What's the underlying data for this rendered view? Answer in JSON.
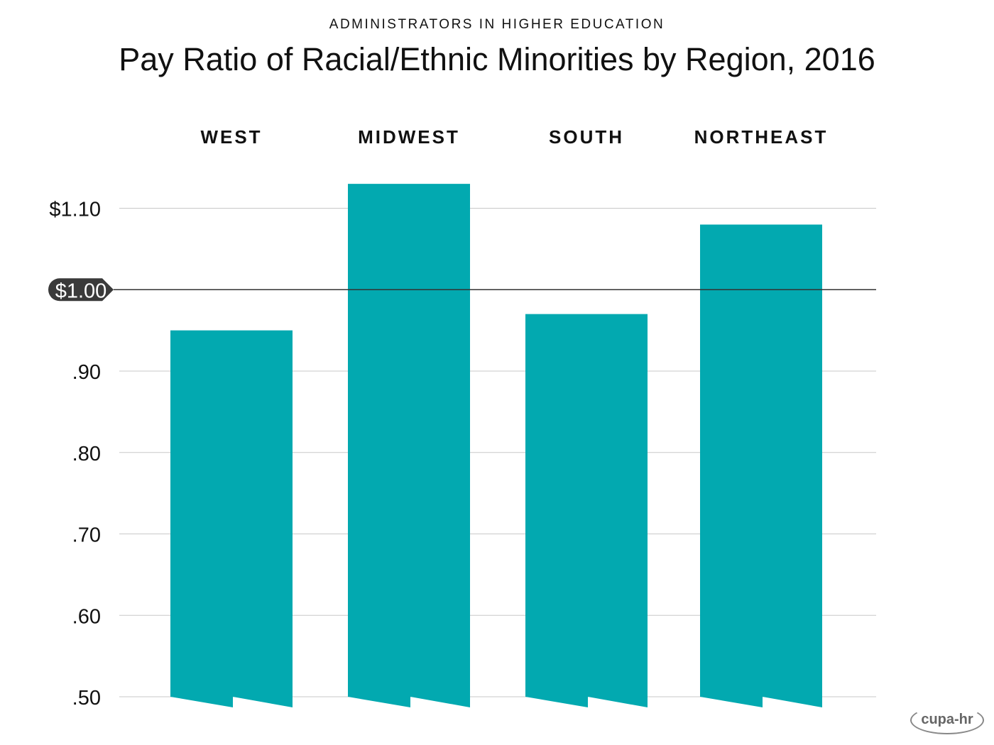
{
  "chart_data": {
    "type": "bar",
    "subtitle": "ADMINISTRATORS IN HIGHER EDUCATION",
    "title": "Pay Ratio of Racial/Ethnic Minorities by Region, 2016",
    "categories": [
      "WEST",
      "MIDWEST",
      "SOUTH",
      "NORTHEAST"
    ],
    "values": [
      0.95,
      1.13,
      0.97,
      1.08
    ],
    "ylim": [
      0.5,
      1.15
    ],
    "yticks": [
      {
        "value": 1.1,
        "label": "$1.10"
      },
      {
        "value": 1.0,
        "label": "$1.00",
        "highlight": true
      },
      {
        "value": 0.9,
        "label": ".90"
      },
      {
        "value": 0.8,
        "label": ".80"
      },
      {
        "value": 0.7,
        "label": ".70"
      },
      {
        "value": 0.6,
        "label": ".60"
      },
      {
        "value": 0.5,
        "label": ".50"
      }
    ],
    "grid": true,
    "bar_color": "#02a9b0",
    "reference_color": "#333333"
  },
  "logo": "cupa-hr"
}
